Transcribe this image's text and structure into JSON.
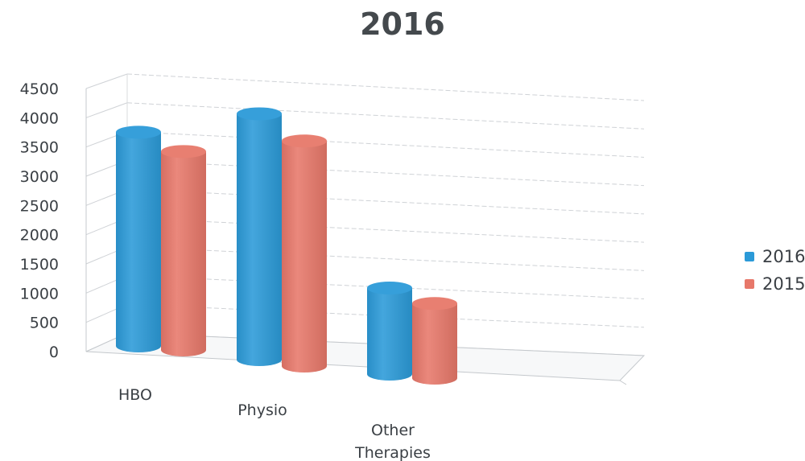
{
  "chart_data": {
    "type": "bar",
    "title": "2016",
    "categories": [
      "HBO",
      "Physio",
      "Other\nTherapies"
    ],
    "series": [
      {
        "name": "2016",
        "values": [
          3500,
          4150,
          1500
        ],
        "color": "#2b9ad8"
      },
      {
        "name": "2015",
        "values": [
          3250,
          3800,
          1300
        ],
        "color": "#e7786a"
      }
    ],
    "ylim": [
      0,
      4500
    ],
    "yticks": [
      0,
      500,
      1000,
      1500,
      2000,
      2500,
      3000,
      3500,
      4000,
      4500
    ],
    "grid": true,
    "legend_position": "right"
  }
}
